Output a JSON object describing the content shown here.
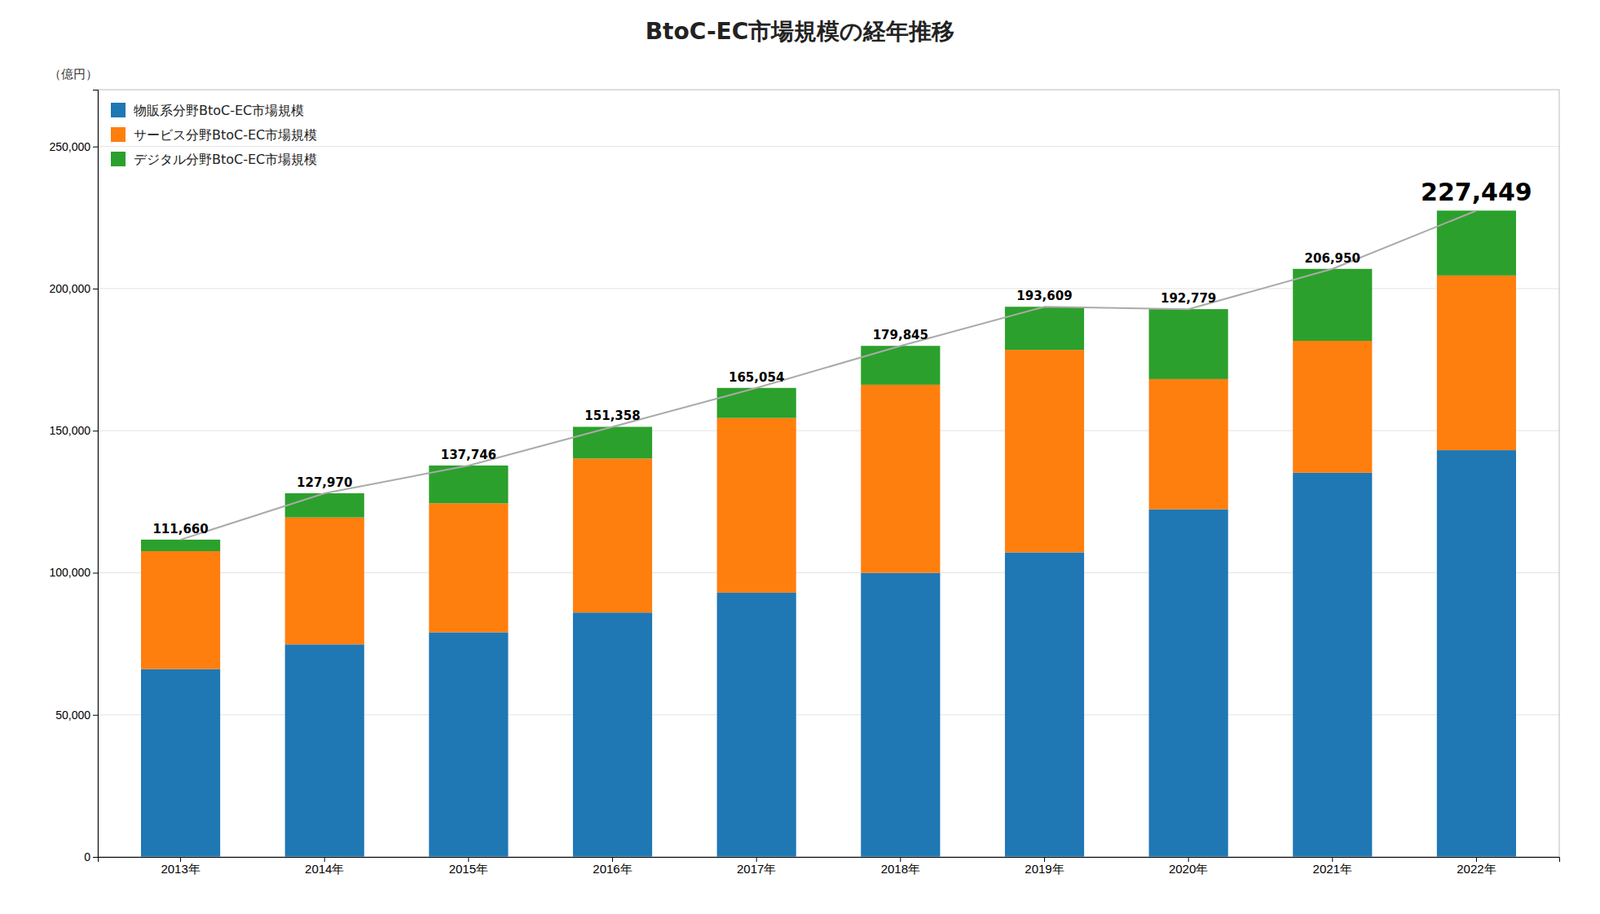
{
  "chart_data": {
    "type": "bar",
    "title": "BtoC-EC市場規模の経年推移",
    "ylabel": "（億円）",
    "categories": [
      "2013年",
      "2014年",
      "2015年",
      "2016年",
      "2017年",
      "2018年",
      "2019年",
      "2020年",
      "2021年",
      "2022年"
    ],
    "stacked": true,
    "series": [
      {
        "name": "物販系分野BtoC-EC市場規模",
        "type": "bar",
        "values": [
          66096,
          74797,
          79058,
          86008,
          92992,
          99958,
          107177,
          122333,
          135194,
          143146
        ]
      },
      {
        "name": "サービス分野BtoC-EC市場規模",
        "type": "bar",
        "values": [
          41492,
          44671,
          45397,
          54184,
          61477,
          66213,
          71258,
          45832,
          46424,
          61477
        ]
      },
      {
        "name": "デジタル分野BtoC-EC市場規模",
        "type": "bar",
        "values": [
          4072,
          8502,
          13291,
          11166,
          10585,
          13674,
          15174,
          24614,
          25332,
          22826
        ]
      },
      {
        "type": "line",
        "color": "#aaaaaa",
        "data_labels": true,
        "values": [
          111660,
          127970,
          137746,
          151358,
          165054,
          179845,
          193609,
          192779,
          206950,
          227449
        ],
        "value_labels": [
          "111,660",
          "127,970",
          "137,746",
          "151,358",
          "165,054",
          "179,845",
          "193,609",
          "192,779",
          "206,950",
          "227,449"
        ]
      }
    ],
    "ylim": [
      0,
      270000
    ],
    "yticks": [
      0,
      {
        "value": 50000,
        "label": "50,000"
      },
      {
        "value": 100000,
        "label": "100,000"
      },
      {
        "value": 150000,
        "label": "150,000"
      },
      {
        "value": 200000,
        "label": "200,000"
      },
      {
        "value": 250000,
        "label": "250,000"
      }
    ],
    "grid": true,
    "legend": "upper left"
  }
}
